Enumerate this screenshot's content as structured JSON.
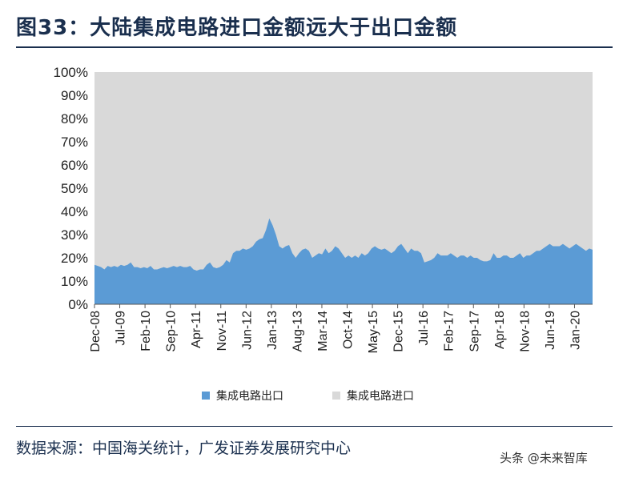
{
  "title": "图33：大陆集成电路进口金额远大于出口金额",
  "source": "数据来源：中国海关统计，广发证券发展研究中心",
  "watermark": "头条 @未来智库",
  "colors": {
    "export": "#5b9bd5",
    "import": "#d9d9d9",
    "rule": "#1a2f4e"
  },
  "chart_data": {
    "type": "area",
    "stacked": true,
    "ylim": [
      0,
      100
    ],
    "y_unit": "%",
    "y_ticks": [
      "0%",
      "10%",
      "20%",
      "30%",
      "40%",
      "50%",
      "60%",
      "70%",
      "80%",
      "90%",
      "100%"
    ],
    "x_ticks": [
      "Dec-08",
      "Jul-09",
      "Feb-10",
      "Sep-10",
      "Apr-11",
      "Nov-11",
      "Jun-12",
      "Jan-13",
      "Aug-13",
      "Mar-14",
      "Oct-14",
      "May-15",
      "Dec-15",
      "Jul-16",
      "Feb-17",
      "Sep-17",
      "Apr-18",
      "Nov-18",
      "Jun-19",
      "Jan-20"
    ],
    "x_start": "2008-12",
    "x_end": "2020-06",
    "legend": [
      "集成电路出口",
      "集成电路进口"
    ],
    "series": [
      {
        "name": "集成电路出口",
        "values": [
          17,
          16.5,
          16,
          15,
          16.5,
          16,
          16.5,
          16,
          17,
          16.5,
          17,
          18,
          16,
          16,
          15.5,
          16,
          15.5,
          16.5,
          15,
          15,
          15.5,
          16,
          15.5,
          16,
          16.5,
          16,
          16.5,
          16,
          16,
          16.5,
          15,
          14.5,
          15,
          15,
          17,
          18,
          16,
          15.5,
          16,
          17,
          19,
          18,
          22,
          23,
          23,
          24,
          23.5,
          24,
          25,
          27,
          28,
          28.5,
          32,
          37,
          34,
          30,
          25,
          24,
          25,
          25.5,
          22,
          20,
          22,
          23.5,
          24,
          23,
          20,
          21,
          22,
          21.5,
          24,
          22,
          23,
          25,
          24,
          22,
          20,
          21,
          20,
          21,
          20,
          22,
          21,
          22,
          24,
          25,
          24,
          23.5,
          24,
          23,
          22,
          23,
          25,
          26,
          24,
          22,
          24,
          23,
          23,
          22,
          18,
          18.5,
          19,
          20,
          22,
          21,
          21,
          21,
          22,
          21,
          20,
          21,
          21,
          20,
          21,
          20,
          20,
          19,
          18.5,
          18.5,
          19,
          22,
          20,
          20,
          21,
          21,
          20,
          20,
          21,
          22,
          20,
          21,
          21,
          22,
          23,
          23,
          24,
          25,
          26,
          25,
          25,
          25,
          26,
          25,
          24,
          25,
          26,
          25,
          24,
          23,
          24,
          23.5
        ]
      },
      {
        "name": "集成电路进口",
        "values": "remainder to 100%"
      }
    ]
  }
}
